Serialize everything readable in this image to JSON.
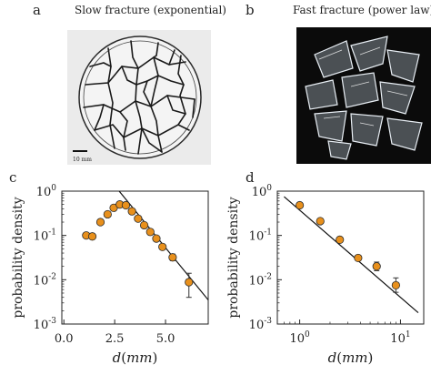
{
  "panels": {
    "a": {
      "letter": "a",
      "title": "Slow fracture (exponential)",
      "scale_bar_label": "10 mm"
    },
    "b": {
      "letter": "b",
      "title": "Fast fracture (power law)"
    },
    "c": {
      "letter": "c"
    },
    "d": {
      "letter": "d"
    }
  },
  "colors": {
    "marker_fill": "#e8901c",
    "marker_edge": "#2b2b2b",
    "fit_line": "#111111"
  },
  "chart_data": [
    {
      "id": "c",
      "type": "scatter",
      "xscale": "linear",
      "yscale": "log",
      "xlabel": "d(mm)",
      "ylabel": "probability density",
      "xlim": [
        -0.1,
        7.1
      ],
      "ylim": [
        0.001,
        1
      ],
      "xticks": [
        0,
        2.5,
        5
      ],
      "xtick_labels": [
        "0.0",
        "2.5",
        "5.0"
      ],
      "yticks": [
        0.001,
        0.01,
        0.1,
        1
      ],
      "ytick_labels": [
        "10^-3",
        "10^-2",
        "10^-1",
        "10^0"
      ],
      "grid": false,
      "series": [
        {
          "x": [
            1.1,
            1.4,
            1.8,
            2.15,
            2.45,
            2.75,
            3.05,
            3.35,
            3.65,
            3.95,
            4.25,
            4.55,
            4.85,
            5.35,
            6.15
          ],
          "y": [
            0.1,
            0.095,
            0.2,
            0.3,
            0.42,
            0.5,
            0.48,
            0.35,
            0.24,
            0.17,
            0.12,
            0.085,
            0.055,
            0.032,
            0.0088
          ],
          "yerr_upper": [
            null,
            null,
            null,
            null,
            null,
            null,
            null,
            null,
            null,
            null,
            null,
            null,
            null,
            0.038,
            0.014
          ],
          "yerr_lower": [
            null,
            null,
            null,
            null,
            null,
            null,
            null,
            null,
            null,
            null,
            null,
            null,
            null,
            0.027,
            0.004
          ]
        }
      ],
      "fit_line": {
        "x": [
          2.72,
          7.1
        ],
        "y": [
          1.0,
          0.0035
        ]
      }
    },
    {
      "id": "d",
      "type": "scatter",
      "xscale": "log",
      "yscale": "log",
      "xlabel": "d(mm)",
      "ylabel": "probability density",
      "xlim": [
        0.6,
        17
      ],
      "ylim": [
        0.001,
        1
      ],
      "xticks": [
        1,
        10
      ],
      "xtick_labels": [
        "10^0",
        "10^1"
      ],
      "yticks": [
        0.001,
        0.01,
        0.1,
        1
      ],
      "ytick_labels": [
        "10^-3",
        "10^-2",
        "10^-1",
        "10^0"
      ],
      "grid": false,
      "series": [
        {
          "x": [
            1.0,
            1.6,
            2.5,
            3.8,
            5.8,
            9.0
          ],
          "y": [
            0.48,
            0.21,
            0.08,
            0.031,
            0.02,
            0.0075
          ],
          "yerr_upper": [
            null,
            null,
            null,
            null,
            0.025,
            0.011
          ],
          "yerr_lower": [
            null,
            null,
            null,
            null,
            0.016,
            0.0052
          ]
        }
      ],
      "fit_line": {
        "x": [
          0.7,
          15.0
        ],
        "y": [
          0.75,
          0.0018
        ]
      }
    }
  ]
}
